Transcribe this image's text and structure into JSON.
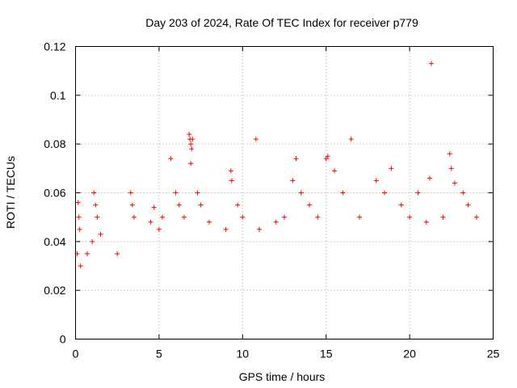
{
  "chart_data": {
    "type": "scatter",
    "title": "Day 203 of 2024, Rate Of TEC Index for receiver p779",
    "xlabel": "GPS time / hours",
    "ylabel": "ROTI / TECUs",
    "xlim": [
      0,
      25
    ],
    "ylim": [
      0,
      0.12
    ],
    "xticks": [
      0,
      5,
      10,
      15,
      20,
      25
    ],
    "yticks": [
      0,
      0.02,
      0.04,
      0.06,
      0.08,
      0.1,
      0.12
    ],
    "xtick_labels": [
      "0",
      "5",
      "10",
      "15",
      "20",
      "25"
    ],
    "ytick_labels": [
      "0",
      "0.02",
      "0.04",
      "0.06",
      "0.08",
      "0.1",
      "0.12"
    ],
    "grid": true,
    "marker": "+",
    "color": "#ff0000",
    "series": [
      {
        "points": [
          [
            0.1,
            0.035
          ],
          [
            0.15,
            0.056
          ],
          [
            0.2,
            0.05
          ],
          [
            0.25,
            0.045
          ],
          [
            0.3,
            0.03
          ],
          [
            0.7,
            0.035
          ],
          [
            1.0,
            0.04
          ],
          [
            1.1,
            0.06
          ],
          [
            1.2,
            0.055
          ],
          [
            1.3,
            0.05
          ],
          [
            1.5,
            0.043
          ],
          [
            2.5,
            0.035
          ],
          [
            3.3,
            0.06
          ],
          [
            3.4,
            0.055
          ],
          [
            3.5,
            0.05
          ],
          [
            4.5,
            0.048
          ],
          [
            4.7,
            0.054
          ],
          [
            5.0,
            0.045
          ],
          [
            5.2,
            0.05
          ],
          [
            5.7,
            0.074
          ],
          [
            6.0,
            0.06
          ],
          [
            6.2,
            0.055
          ],
          [
            6.5,
            0.05
          ],
          [
            6.8,
            0.084
          ],
          [
            6.85,
            0.082
          ],
          [
            6.9,
            0.08
          ],
          [
            6.95,
            0.078
          ],
          [
            7.0,
            0.082
          ],
          [
            6.9,
            0.072
          ],
          [
            7.3,
            0.06
          ],
          [
            7.5,
            0.055
          ],
          [
            8.0,
            0.048
          ],
          [
            9.0,
            0.045
          ],
          [
            9.3,
            0.069
          ],
          [
            9.35,
            0.065
          ],
          [
            9.7,
            0.055
          ],
          [
            10.0,
            0.05
          ],
          [
            10.8,
            0.082
          ],
          [
            11.0,
            0.045
          ],
          [
            12.0,
            0.048
          ],
          [
            12.5,
            0.05
          ],
          [
            13.0,
            0.065
          ],
          [
            13.2,
            0.074
          ],
          [
            13.5,
            0.06
          ],
          [
            14.0,
            0.055
          ],
          [
            14.5,
            0.05
          ],
          [
            15.0,
            0.074
          ],
          [
            15.1,
            0.075
          ],
          [
            15.5,
            0.069
          ],
          [
            16.0,
            0.06
          ],
          [
            16.5,
            0.082
          ],
          [
            17.0,
            0.05
          ],
          [
            18.0,
            0.065
          ],
          [
            18.5,
            0.06
          ],
          [
            18.9,
            0.07
          ],
          [
            19.5,
            0.055
          ],
          [
            20.0,
            0.05
          ],
          [
            20.5,
            0.06
          ],
          [
            21.0,
            0.048
          ],
          [
            21.2,
            0.066
          ],
          [
            21.3,
            0.113
          ],
          [
            22.0,
            0.05
          ],
          [
            22.4,
            0.076
          ],
          [
            22.5,
            0.07
          ],
          [
            22.7,
            0.064
          ],
          [
            23.2,
            0.06
          ],
          [
            23.5,
            0.055
          ],
          [
            24.0,
            0.05
          ]
        ]
      }
    ]
  }
}
